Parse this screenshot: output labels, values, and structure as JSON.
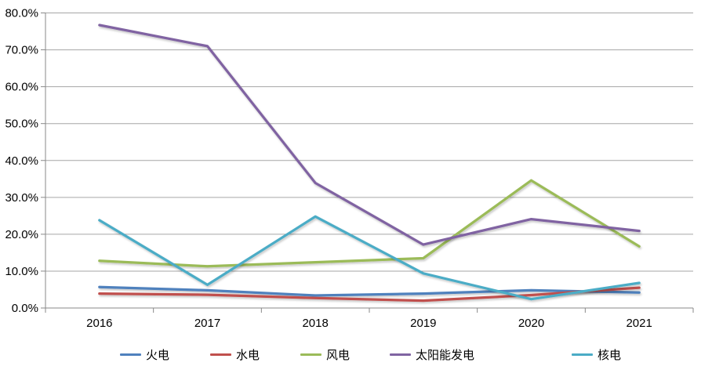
{
  "chart_data": {
    "type": "line",
    "title": "",
    "categories": [
      "2016",
      "2017",
      "2018",
      "2019",
      "2020",
      "2021"
    ],
    "series": [
      {
        "name": "火电",
        "color": "#4F81BD",
        "values": [
          5.7,
          4.8,
          3.4,
          3.9,
          4.8,
          4.2
        ]
      },
      {
        "name": "水电",
        "color": "#C0504D",
        "values": [
          3.9,
          3.6,
          2.7,
          2.0,
          3.5,
          5.5
        ]
      },
      {
        "name": "风电",
        "color": "#9BBB59",
        "values": [
          12.8,
          11.3,
          12.4,
          13.5,
          34.6,
          16.7
        ]
      },
      {
        "name": "太阳能发电",
        "color": "#8064A2",
        "values": [
          76.7,
          71.0,
          33.9,
          17.2,
          24.1,
          20.9
        ]
      },
      {
        "name": "核电",
        "color": "#4BACC6",
        "values": [
          23.8,
          6.3,
          24.8,
          9.4,
          2.4,
          6.8
        ]
      }
    ],
    "ylim": [
      0,
      80
    ],
    "ytick_step": 10,
    "y_tick_labels": [
      "0.0%",
      "10.0%",
      "20.0%",
      "30.0%",
      "40.0%",
      "50.0%",
      "60.0%",
      "70.0%",
      "80.0%"
    ],
    "xlabel": "",
    "ylabel": "",
    "grid": "horizontal",
    "legend_position": "bottom",
    "palette": {
      "background": "#FFFFFF",
      "grid_color": "#A6A6A6",
      "axis_color": "#898989",
      "text_color": "#000000"
    }
  }
}
